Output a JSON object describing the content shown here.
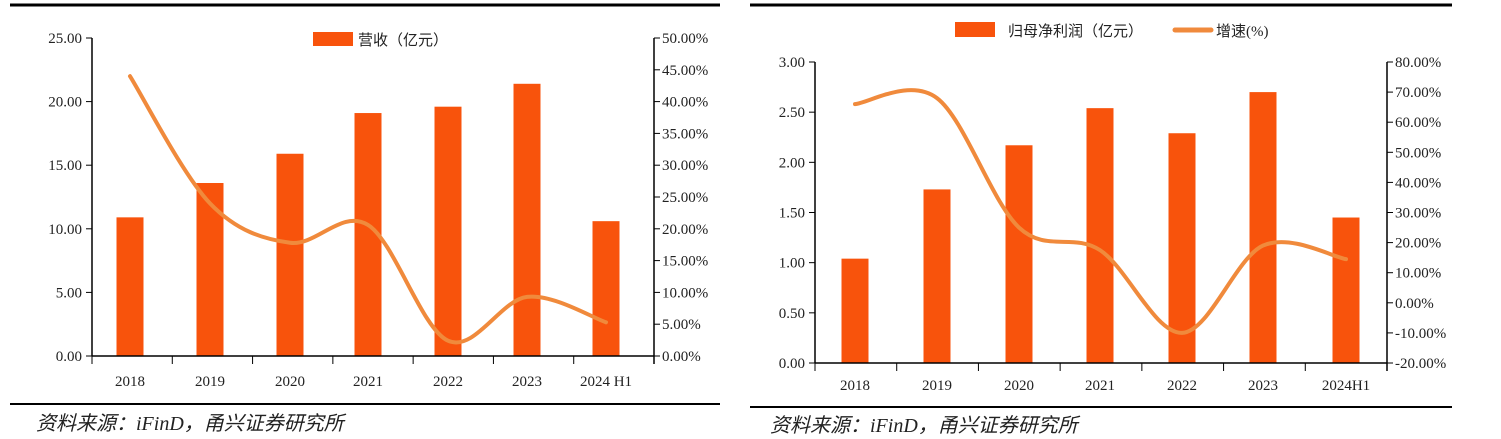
{
  "colors": {
    "bar": "#F8530C",
    "line": "#F08A3C",
    "axis": "#000000"
  },
  "source_text": "资料来源：iFinD，甬兴证券研究所",
  "chart_data": [
    {
      "type": "bar+line",
      "title": "",
      "categories": [
        "2018",
        "2019",
        "2020",
        "2021",
        "2022",
        "2023",
        "2024 H1"
      ],
      "series": [
        {
          "name": "营收（亿元）",
          "type": "bar",
          "axis": "left",
          "values": [
            10.9,
            13.6,
            15.9,
            19.1,
            19.6,
            21.4,
            10.6
          ]
        },
        {
          "name": "",
          "type": "line",
          "axis": "right",
          "values": [
            44.0,
            24.0,
            17.8,
            20.6,
            2.4,
            9.3,
            5.3
          ]
        }
      ],
      "ylim": [
        0,
        25
      ],
      "yticks": [
        "0.00",
        "5.00",
        "10.00",
        "15.00",
        "20.00",
        "25.00"
      ],
      "y2lim": [
        0,
        50
      ],
      "y2ticks": [
        "0.00%",
        "5.00%",
        "10.00%",
        "15.00%",
        "20.00%",
        "25.00%",
        "30.00%",
        "35.00%",
        "40.00%",
        "45.00%",
        "50.00%"
      ],
      "legend": [
        "营收（亿元）"
      ],
      "legend_position": "top-center"
    },
    {
      "type": "bar+line",
      "title": "",
      "categories": [
        "2018",
        "2019",
        "2020",
        "2021",
        "2022",
        "2023",
        "2024H1"
      ],
      "series": [
        {
          "name": "归母净利润（亿元）",
          "type": "bar",
          "axis": "left",
          "values": [
            1.04,
            1.73,
            2.17,
            2.54,
            2.29,
            2.7,
            1.45
          ]
        },
        {
          "name": "增速(%)",
          "type": "line",
          "axis": "right",
          "values": [
            66.0,
            68.0,
            25.0,
            17.5,
            -10.0,
            19.0,
            14.5
          ]
        }
      ],
      "ylim": [
        0,
        3
      ],
      "yticks": [
        "0.00",
        "0.50",
        "1.00",
        "1.50",
        "2.00",
        "2.50",
        "3.00"
      ],
      "y2lim": [
        -20,
        80
      ],
      "y2ticks": [
        "-20.00%",
        "-10.00%",
        "0.00%",
        "10.00%",
        "20.00%",
        "30.00%",
        "40.00%",
        "50.00%",
        "60.00%",
        "70.00%",
        "80.00%"
      ],
      "legend": [
        "归母净利润（亿元）",
        "增速(%)"
      ],
      "legend_position": "top-center"
    }
  ]
}
